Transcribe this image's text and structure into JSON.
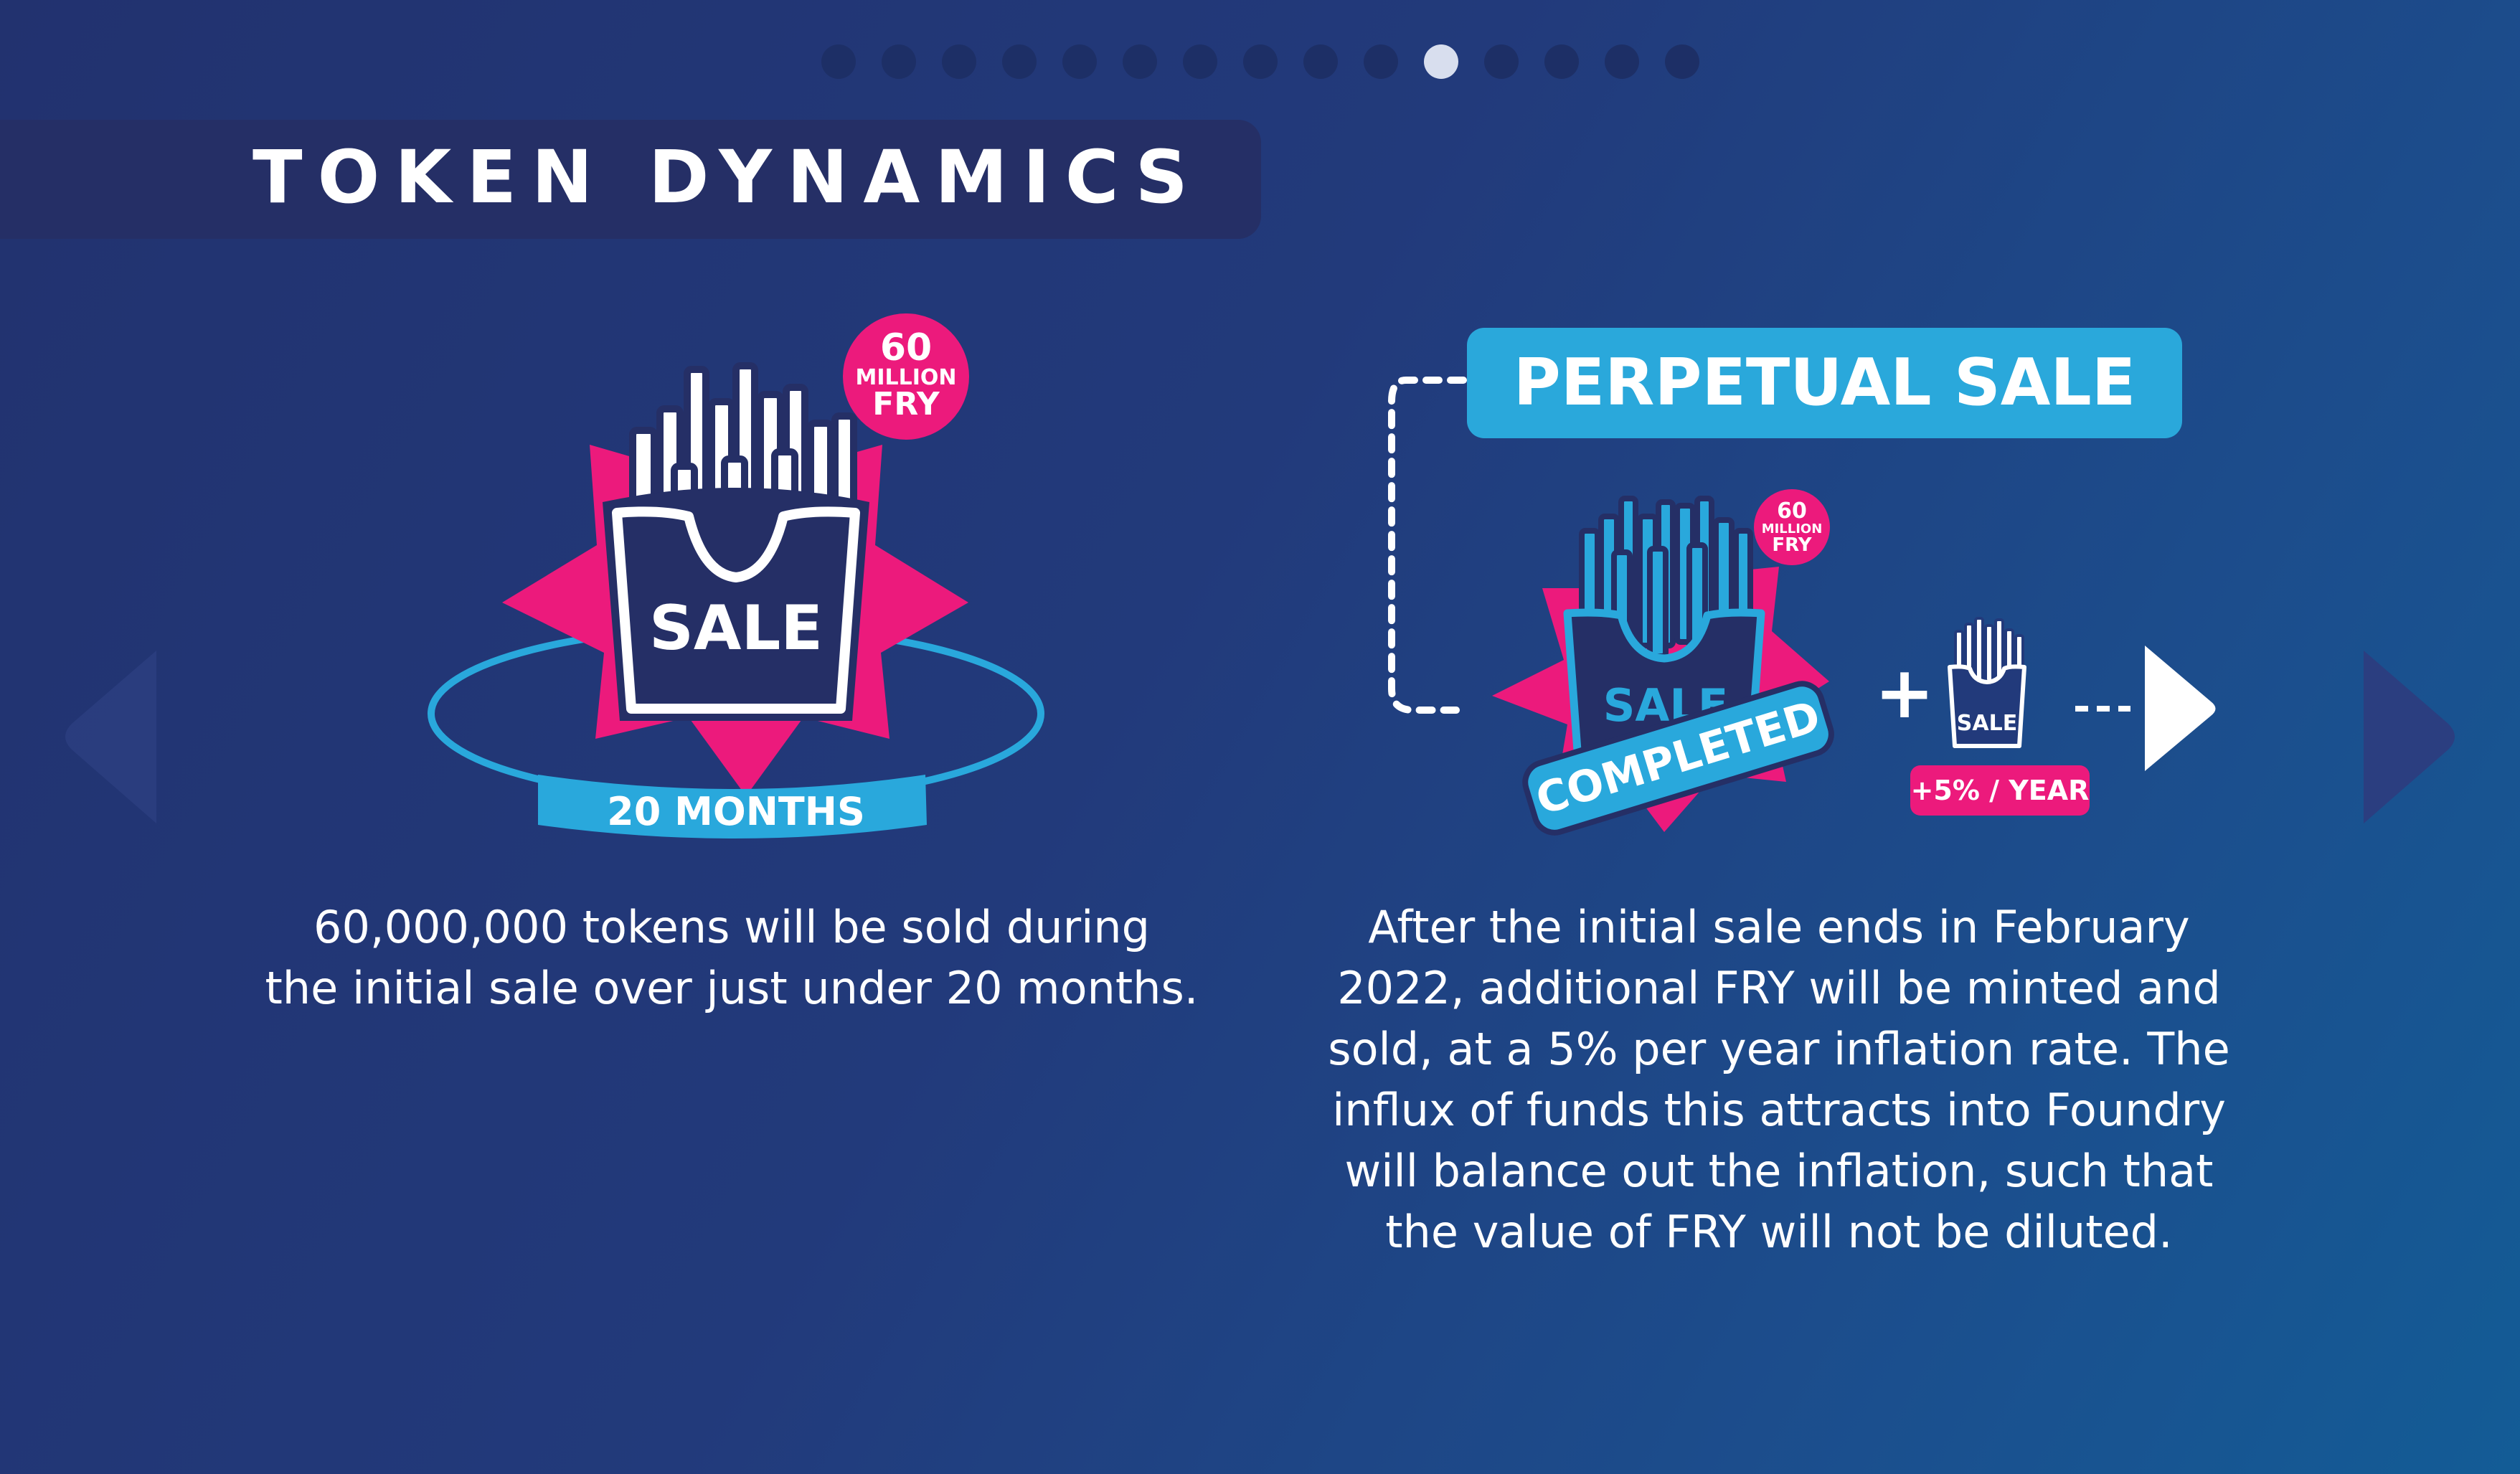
{
  "carousel": {
    "total": 15,
    "active_index": 10
  },
  "title": "TOKEN DYNAMICS",
  "left_panel": {
    "badge_number": "60",
    "badge_unit": "MILLION",
    "badge_token": "FRY",
    "box_label": "SALE",
    "duration": "20 MONTHS",
    "caption_line1": "60,000,000 tokens will be sold during",
    "caption_line2": "the initial sale over just under 20 months."
  },
  "right_panel": {
    "heading": "PERPETUAL SALE",
    "badge_number": "60",
    "badge_unit": "MILLION",
    "badge_token": "FRY",
    "box_label": "SALE",
    "status_ribbon": "COMPLETED",
    "plus_sign": "+",
    "small_box_label": "SALE",
    "inflation_label": "+5% / YEAR",
    "caption_lines": [
      "After the initial sale ends in February",
      "2022, additional FRY will be minted and",
      "sold, at a 5% per year inflation rate. The",
      "influx of funds this attracts into Foundry",
      "will balance out the inflation, such that",
      "the value of FRY will not be diluted."
    ]
  },
  "colors": {
    "pink": "#ec1a7c",
    "cyan": "#2aa8db",
    "navy": "#252f66",
    "background": "#223a7b"
  }
}
